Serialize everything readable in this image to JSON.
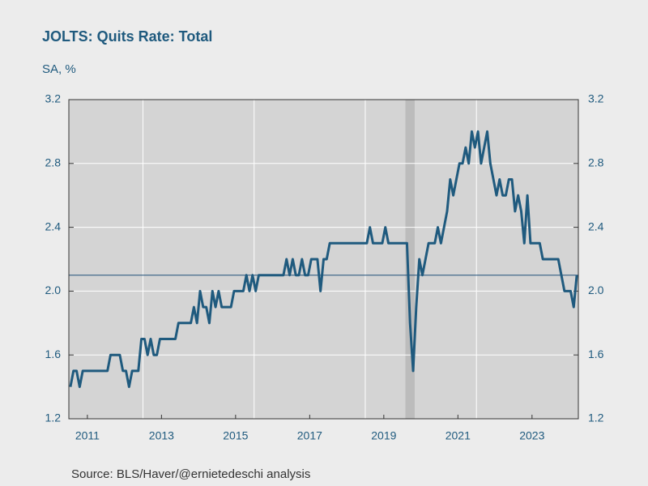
{
  "chart_data": {
    "type": "line",
    "title": "JOLTS: Quits Rate: Total",
    "subtitle": "SA, %",
    "source": "Source:  BLS/Haver/@ernietedeschi analysis",
    "x": [
      "2011-01",
      "2011-02",
      "2011-03",
      "2011-04",
      "2011-05",
      "2011-06",
      "2011-07",
      "2011-08",
      "2011-09",
      "2011-10",
      "2011-11",
      "2011-12",
      "2012-01",
      "2012-02",
      "2012-03",
      "2012-04",
      "2012-05",
      "2012-06",
      "2012-07",
      "2012-08",
      "2012-09",
      "2012-10",
      "2012-11",
      "2012-12",
      "2013-01",
      "2013-02",
      "2013-03",
      "2013-04",
      "2013-05",
      "2013-06",
      "2013-07",
      "2013-08",
      "2013-09",
      "2013-10",
      "2013-11",
      "2013-12",
      "2014-01",
      "2014-02",
      "2014-03",
      "2014-04",
      "2014-05",
      "2014-06",
      "2014-07",
      "2014-08",
      "2014-09",
      "2014-10",
      "2014-11",
      "2014-12",
      "2015-01",
      "2015-02",
      "2015-03",
      "2015-04",
      "2015-05",
      "2015-06",
      "2015-07",
      "2015-08",
      "2015-09",
      "2015-10",
      "2015-11",
      "2015-12",
      "2016-01",
      "2016-02",
      "2016-03",
      "2016-04",
      "2016-05",
      "2016-06",
      "2016-07",
      "2016-08",
      "2016-09",
      "2016-10",
      "2016-11",
      "2016-12",
      "2017-01",
      "2017-02",
      "2017-03",
      "2017-04",
      "2017-05",
      "2017-06",
      "2017-07",
      "2017-08",
      "2017-09",
      "2017-10",
      "2017-11",
      "2017-12",
      "2018-01",
      "2018-02",
      "2018-03",
      "2018-04",
      "2018-05",
      "2018-06",
      "2018-07",
      "2018-08",
      "2018-09",
      "2018-10",
      "2018-11",
      "2018-12",
      "2019-01",
      "2019-02",
      "2019-03",
      "2019-04",
      "2019-05",
      "2019-06",
      "2019-07",
      "2019-08",
      "2019-09",
      "2019-10",
      "2019-11",
      "2019-12",
      "2020-01",
      "2020-02",
      "2020-03",
      "2020-04",
      "2020-05",
      "2020-06",
      "2020-07",
      "2020-08",
      "2020-09",
      "2020-10",
      "2020-11",
      "2020-12",
      "2021-01",
      "2021-02",
      "2021-03",
      "2021-04",
      "2021-05",
      "2021-06",
      "2021-07",
      "2021-08",
      "2021-09",
      "2021-10",
      "2021-11",
      "2021-12",
      "2022-01",
      "2022-02",
      "2022-03",
      "2022-04",
      "2022-05",
      "2022-06",
      "2022-07",
      "2022-08",
      "2022-09",
      "2022-10",
      "2022-11",
      "2022-12",
      "2023-01",
      "2023-02",
      "2023-03",
      "2023-04",
      "2023-05",
      "2023-06",
      "2023-07",
      "2023-08",
      "2023-09",
      "2023-10",
      "2023-11",
      "2023-12",
      "2024-01",
      "2024-02",
      "2024-03",
      "2024-04",
      "2024-05",
      "2024-06",
      "2024-07",
      "2024-08",
      "2024-09"
    ],
    "series": [
      {
        "name": "Quits Rate",
        "color": "#1f5a7e",
        "values": [
          1.4,
          1.5,
          1.5,
          1.4,
          1.5,
          1.5,
          1.5,
          1.5,
          1.5,
          1.5,
          1.5,
          1.5,
          1.5,
          1.6,
          1.6,
          1.6,
          1.6,
          1.5,
          1.5,
          1.4,
          1.5,
          1.5,
          1.5,
          1.7,
          1.7,
          1.6,
          1.7,
          1.6,
          1.6,
          1.7,
          1.7,
          1.7,
          1.7,
          1.7,
          1.7,
          1.8,
          1.8,
          1.8,
          1.8,
          1.8,
          1.9,
          1.8,
          2.0,
          1.9,
          1.9,
          1.8,
          2.0,
          1.9,
          2.0,
          1.9,
          1.9,
          1.9,
          1.9,
          2.0,
          2.0,
          2.0,
          2.0,
          2.1,
          2.0,
          2.1,
          2.0,
          2.1,
          2.1,
          2.1,
          2.1,
          2.1,
          2.1,
          2.1,
          2.1,
          2.1,
          2.2,
          2.1,
          2.2,
          2.1,
          2.1,
          2.2,
          2.1,
          2.1,
          2.2,
          2.2,
          2.2,
          2.0,
          2.2,
          2.2,
          2.3,
          2.3,
          2.3,
          2.3,
          2.3,
          2.3,
          2.3,
          2.3,
          2.3,
          2.3,
          2.3,
          2.3,
          2.3,
          2.4,
          2.3,
          2.3,
          2.3,
          2.3,
          2.4,
          2.3,
          2.3,
          2.3,
          2.3,
          2.3,
          2.3,
          2.3,
          1.8,
          1.5,
          1.9,
          2.2,
          2.1,
          2.2,
          2.3,
          2.3,
          2.3,
          2.4,
          2.3,
          2.4,
          2.5,
          2.7,
          2.6,
          2.7,
          2.8,
          2.8,
          2.9,
          2.8,
          3.0,
          2.9,
          3.0,
          2.8,
          2.9,
          3.0,
          2.8,
          2.7,
          2.6,
          2.7,
          2.6,
          2.6,
          2.7,
          2.7,
          2.5,
          2.6,
          2.5,
          2.3,
          2.6,
          2.3,
          2.3,
          2.3,
          2.3,
          2.2,
          2.2,
          2.2,
          2.2,
          2.2,
          2.2,
          2.1,
          2.0,
          2.0,
          2.0,
          1.9,
          2.1
        ]
      }
    ],
    "xlim": [
      "2011-01",
      "2024-09"
    ],
    "xticks": [
      2011,
      2013,
      2015,
      2017,
      2019,
      2021,
      2023
    ],
    "xgrid": [
      "2013-01",
      "2016-01",
      "2019-01",
      "2022-01"
    ],
    "shading": [
      [
        "2020-02",
        "2020-04"
      ]
    ],
    "reference_line": 2.1,
    "ylim": [
      1.2,
      3.2
    ],
    "yticks": [
      1.2,
      1.6,
      {
        "value": 2,
        "label": "2.0"
      },
      2.4,
      2.8,
      3.2
    ],
    "grid": true
  }
}
